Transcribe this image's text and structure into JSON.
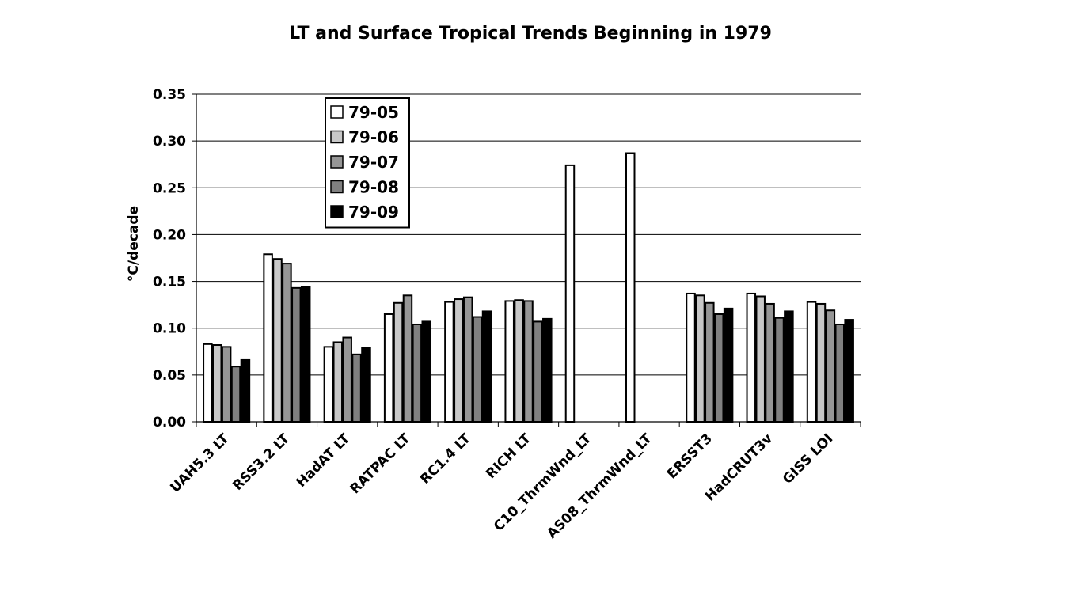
{
  "chart_data": {
    "type": "bar",
    "title": "LT and Surface Tropical Trends Beginning in 1979",
    "xlabel": "",
    "ylabel": "°C/decade",
    "ylim": [
      0,
      0.35
    ],
    "yticks": [
      "0.00",
      "0.05",
      "0.10",
      "0.15",
      "0.20",
      "0.25",
      "0.30",
      "0.35"
    ],
    "grid": true,
    "legend_position": "top-left",
    "categories": [
      "UAH5.3 LT",
      "RSS3.2 LT",
      "HadAT LT",
      "RATPAC LT",
      "RC1.4 LT",
      "RICH LT",
      "C10_ThrmWnd_LT",
      "AS08_ThrmWnd_LT",
      "ERSST3",
      "HadCRUT3v",
      "GISS LOI"
    ],
    "series": [
      {
        "name": "79-05",
        "color": "#ffffff",
        "values": [
          0.083,
          0.179,
          0.08,
          0.115,
          0.128,
          0.129,
          0.274,
          0.287,
          0.137,
          0.137,
          0.128
        ]
      },
      {
        "name": "79-06",
        "color": "#c8c8c8",
        "values": [
          0.082,
          0.174,
          0.085,
          0.127,
          0.131,
          0.13,
          null,
          null,
          0.135,
          0.134,
          0.126
        ]
      },
      {
        "name": "79-07",
        "color": "#969696",
        "values": [
          0.08,
          0.169,
          0.09,
          0.135,
          0.133,
          0.129,
          null,
          null,
          0.127,
          0.126,
          0.119
        ]
      },
      {
        "name": "79-08",
        "color": "#808080",
        "values": [
          0.059,
          0.143,
          0.072,
          0.104,
          0.112,
          0.107,
          null,
          null,
          0.115,
          0.111,
          0.104
        ]
      },
      {
        "name": "79-09",
        "color": "#000000",
        "values": [
          0.066,
          0.144,
          0.079,
          0.107,
          0.118,
          0.11,
          null,
          null,
          0.121,
          0.118,
          0.109
        ]
      }
    ]
  }
}
